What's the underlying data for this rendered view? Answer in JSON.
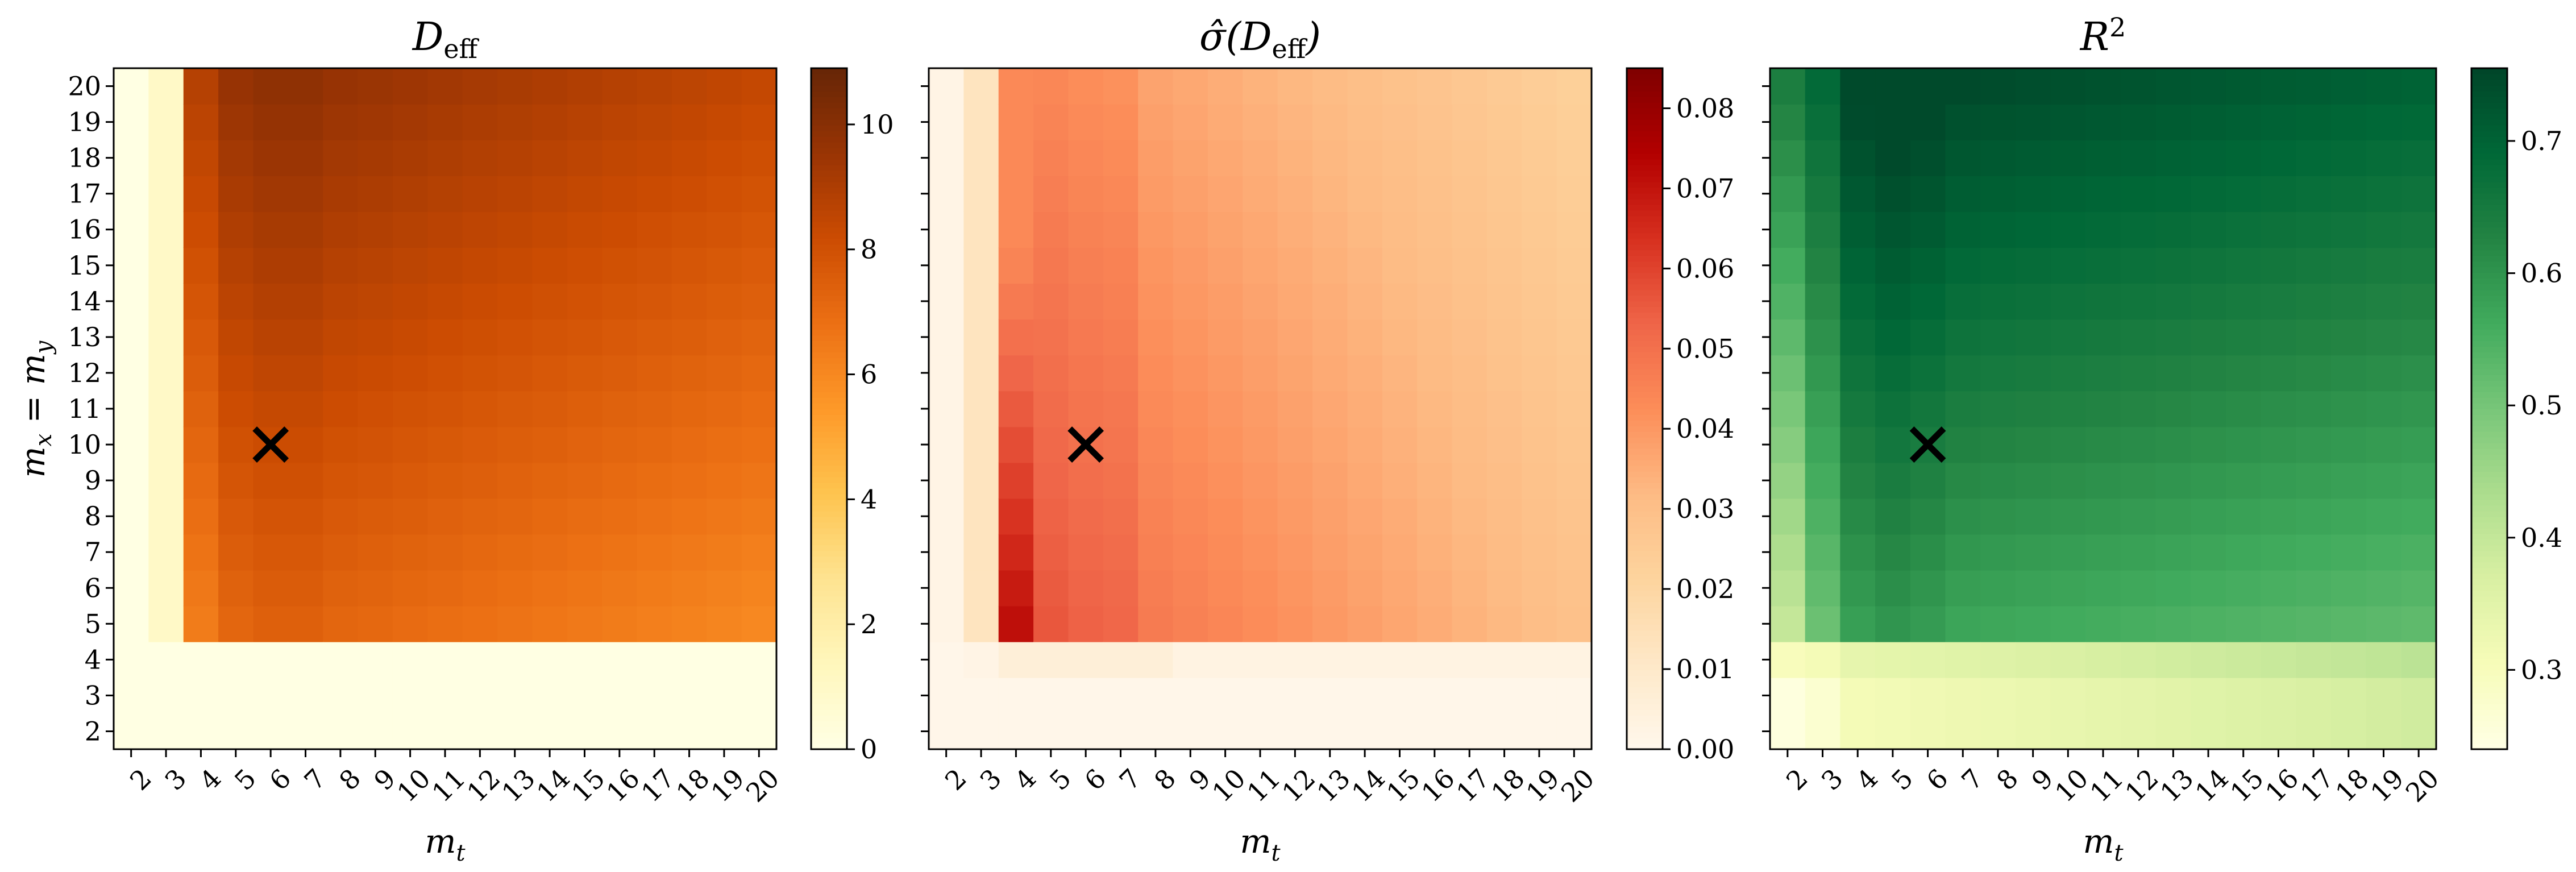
{
  "chart_data": [
    {
      "type": "heatmap",
      "title": "D_eff",
      "xlabel": "m_t",
      "ylabel": "m_x = m_y",
      "x": [
        2,
        3,
        4,
        5,
        6,
        7,
        8,
        9,
        10,
        11,
        12,
        13,
        14,
        15,
        16,
        17,
        18,
        19,
        20
      ],
      "y": [
        2,
        3,
        4,
        5,
        6,
        7,
        8,
        9,
        10,
        11,
        12,
        13,
        14,
        15,
        16,
        17,
        18,
        19,
        20
      ],
      "colormap": "YlOrBr",
      "colorbar_range": [
        0,
        10.9
      ],
      "colorbar_ticks": [
        0,
        2,
        4,
        6,
        8,
        10
      ],
      "colorbar_tick_labels": [
        "0",
        "2",
        "4",
        "6",
        "8",
        "10"
      ],
      "marker": {
        "x": 6,
        "y": 10,
        "symbol": "×"
      },
      "value_model": {
        "low_region_value_x2": 0.05,
        "low_region_value_x3": 1.0,
        "low_rows_y_max": 4,
        "peak_value": 10.4,
        "peak_at": [
          6,
          20
        ],
        "min_high_value": 6.7
      }
    },
    {
      "type": "heatmap",
      "title": "σ̂(D_eff)",
      "xlabel": "m_t",
      "ylabel": "",
      "x": [
        2,
        3,
        4,
        5,
        6,
        7,
        8,
        9,
        10,
        11,
        12,
        13,
        14,
        15,
        16,
        17,
        18,
        19,
        20
      ],
      "y": [
        2,
        3,
        4,
        5,
        6,
        7,
        8,
        9,
        10,
        11,
        12,
        13,
        14,
        15,
        16,
        17,
        18,
        19,
        20
      ],
      "colormap": "OrRd",
      "colorbar_range": [
        0,
        0.085
      ],
      "colorbar_ticks": [
        0,
        0.01,
        0.02,
        0.03,
        0.04,
        0.05,
        0.06,
        0.07,
        0.08
      ],
      "colorbar_tick_labels": [
        "0.00",
        "0.01",
        "0.02",
        "0.03",
        "0.04",
        "0.05",
        "0.06",
        "0.07",
        "0.08"
      ],
      "marker": {
        "x": 6,
        "y": 10,
        "symbol": "×"
      },
      "value_model": {
        "max_value": 0.082,
        "max_at": [
          4,
          5
        ],
        "right_edge_value": 0.027
      }
    },
    {
      "type": "heatmap",
      "title": "R²",
      "xlabel": "m_t",
      "ylabel": "",
      "x": [
        2,
        3,
        4,
        5,
        6,
        7,
        8,
        9,
        10,
        11,
        12,
        13,
        14,
        15,
        16,
        17,
        18,
        19,
        20
      ],
      "y": [
        2,
        3,
        4,
        5,
        6,
        7,
        8,
        9,
        10,
        11,
        12,
        13,
        14,
        15,
        16,
        17,
        18,
        19,
        20
      ],
      "colormap": "YlGn",
      "colorbar_range": [
        0.24,
        0.755
      ],
      "colorbar_ticks": [
        0.3,
        0.4,
        0.5,
        0.6,
        0.7
      ],
      "colorbar_tick_labels": [
        "0.3",
        "0.4",
        "0.5",
        "0.6",
        "0.7"
      ],
      "marker": {
        "x": 6,
        "y": 10,
        "symbol": "×"
      },
      "value_model": {
        "max_value": 0.74,
        "max_at": [
          5,
          20
        ],
        "min_value": 0.26,
        "low_rows_y_max": 3
      }
    }
  ]
}
